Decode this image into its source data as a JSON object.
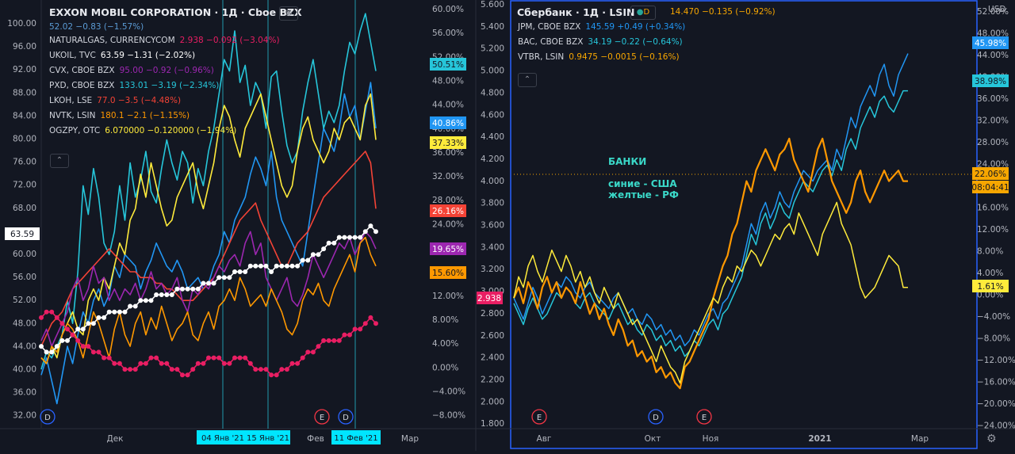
{
  "left": {
    "title": "EXXON MOBIL CORPORATION · 1Д · Cboe BZX",
    "main_values": "52.02  −0.83 (−1.57%)",
    "legend": [
      {
        "sym": "NATURALGAS, CURRENCYCOM",
        "vals": "2.938  −0.092 (−3.04%)",
        "color": "#e91e63"
      },
      {
        "sym": "UKOIL, TVC",
        "vals": "63.59  −1.31 (−2.02%)",
        "color": "#ffffff"
      },
      {
        "sym": "CVX, CBOE BZX",
        "vals": "95.00  −0.92 (−0.96%)",
        "color": "#9c27b0"
      },
      {
        "sym": "PXD, CBOE BZX",
        "vals": "133.01  −3.19 (−2.34%)",
        "color": "#26c6da"
      },
      {
        "sym": "LKOH, LSE",
        "vals": "77.0  −3.5 (−4.48%)",
        "color": "#f44336"
      },
      {
        "sym": "NVTK, LSIN",
        "vals": "180.1  −2.1 (−1.15%)",
        "color": "#ff9800"
      },
      {
        "sym": "OGZPY, OTC",
        "vals": "6.070000  −0.120000 (−1.94%)",
        "color": "#ffeb3b"
      }
    ],
    "axis_left_ticks": [
      "100.00",
      "96.00",
      "92.00",
      "88.00",
      "84.00",
      "80.00",
      "76.00",
      "72.00",
      "68.00",
      "64.00",
      "60.00",
      "56.00",
      "52.00",
      "48.00",
      "44.00",
      "40.00",
      "36.00",
      "32.00"
    ],
    "axis_pct_ticks": [
      "60.00%",
      "56.00%",
      "52.00%",
      "48.00%",
      "44.00%",
      "40.00%",
      "36.00%",
      "32.00%",
      "28.00%",
      "24.00%",
      "20.00%",
      "16.00%",
      "12.00%",
      "8.00%",
      "4.00%",
      "0.00%",
      "−4.00%",
      "−8.00%"
    ],
    "axis_mid_ticks": [
      "5.600",
      "5.400",
      "5.200",
      "5.000",
      "4.800",
      "4.600",
      "4.400",
      "4.200",
      "4.000",
      "3.800",
      "3.600",
      "3.400",
      "3.200",
      "3.000",
      "2.800",
      "2.600",
      "2.400",
      "2.200",
      "2.000",
      "1.800"
    ],
    "x_labels": [
      "Дек",
      "Фев",
      "Мар"
    ],
    "x_highlight_labels": [
      "04 Янв '21",
      "15 Янв '21",
      "11 Фев '21"
    ],
    "badges": [
      {
        "text": "50.51%",
        "color": "#26c6da",
        "fg": "#131722"
      },
      {
        "text": "40.86%",
        "color": "#2196f3",
        "fg": "#ffffff"
      },
      {
        "text": "37.33%",
        "color": "#ffeb3b",
        "fg": "#131722"
      },
      {
        "text": "26.16%",
        "color": "#f44336",
        "fg": "#ffffff"
      },
      {
        "text": "19.65%",
        "color": "#9c27b0",
        "fg": "#ffffff"
      },
      {
        "text": "15.60%",
        "color": "#ff9800",
        "fg": "#131722"
      },
      {
        "text": "2.938",
        "color": "#e91e63",
        "fg": "#ffffff"
      },
      {
        "text": "63.59",
        "color": "#ffffff",
        "fg": "#131722"
      }
    ],
    "events": [
      "D",
      "E",
      "D"
    ]
  },
  "right": {
    "title": "Сбербанк · 1Д · LSIN",
    "main_values": "14.470  −0.135 (−0.92%)",
    "currency": "USD",
    "legend": [
      {
        "sym": "JPM, CBOE BZX",
        "vals": "145.59  +0.49 (+0.34%)",
        "color": "#2196f3"
      },
      {
        "sym": "BAC, CBOE BZX",
        "vals": "34.19  −0.22 (−0.64%)",
        "color": "#26c6da"
      },
      {
        "sym": "VTBR, LSIN",
        "vals": "0.9475  −0.0015 (−0.16%)",
        "color": "#f7a600"
      }
    ],
    "axis_ticks": [
      "52.00%",
      "48.00%",
      "44.00%",
      "40.00%",
      "36.00%",
      "32.00%",
      "28.00%",
      "24.00%",
      "20.00%",
      "16.00%",
      "12.00%",
      "8.00%",
      "4.00%",
      "0.00%",
      "−4.00%",
      "−8.00%",
      "−12.00%",
      "−16.00%",
      "−20.00%",
      "−24.00%"
    ],
    "x_labels": [
      "Авг",
      "Окт",
      "Ноя",
      "2021",
      "Мар"
    ],
    "badges": [
      {
        "text": "45.98%",
        "color": "#2196f3",
        "fg": "#ffffff"
      },
      {
        "text": "38.98%",
        "color": "#26c6da",
        "fg": "#131722"
      },
      {
        "text": "22.06%",
        "color": "#f7a600",
        "fg": "#131722"
      },
      {
        "text": "08:04:41",
        "color": "#f7a600",
        "fg": "#131722"
      },
      {
        "text": "1.61%",
        "color": "#ffeb3b",
        "fg": "#131722"
      }
    ],
    "events": [
      "E",
      "D",
      "E"
    ],
    "note_title": "БАНКИ",
    "note_lines": [
      "синие - США",
      "желтые - РФ"
    ]
  },
  "chart_data": [
    {
      "type": "line",
      "title": "EXXON MOBIL CORPORATION · 1Д · Cboe BZX (percent comparison)",
      "xlabel": "",
      "ylabel": "%",
      "ylim": [
        -10,
        61
      ],
      "x_range": [
        "Nov 2020",
        "Mar 2021"
      ],
      "series": [
        {
          "name": "XOM",
          "color": "#2196f3",
          "values": [
            -3,
            0,
            -4,
            -8,
            -3,
            2,
            -1,
            4,
            8,
            6,
            10,
            12,
            9,
            11,
            16,
            14,
            18,
            17,
            16,
            12,
            15,
            17,
            20,
            18,
            16,
            15,
            17,
            15,
            12,
            13,
            14,
            12,
            13,
            16,
            18,
            22,
            20,
            24,
            26,
            28,
            32,
            35,
            33,
            30,
            36,
            28,
            24,
            22,
            20,
            18,
            16,
            22,
            28,
            34,
            40,
            38,
            36,
            40,
            46,
            42,
            44,
            38,
            43,
            48,
            40
          ]
        },
        {
          "name": "PXD",
          "color": "#26c6da",
          "values": [
            -2,
            1,
            0,
            2,
            4,
            10,
            6,
            15,
            30,
            25,
            33,
            28,
            20,
            18,
            22,
            30,
            24,
            34,
            28,
            31,
            36,
            29,
            27,
            33,
            38,
            34,
            31,
            36,
            34,
            27,
            33,
            30,
            36,
            40,
            46,
            52,
            50,
            57,
            48,
            51,
            44,
            48,
            46,
            40,
            49,
            50,
            43,
            37,
            34,
            36,
            43,
            48,
            52,
            46,
            40,
            43,
            41,
            44,
            50,
            55,
            53,
            57,
            60,
            55,
            50
          ]
        },
        {
          "name": "OGZPY",
          "color": "#ffeb3b",
          "values": [
            0,
            -1,
            2,
            0,
            4,
            6,
            8,
            5,
            4,
            10,
            12,
            10,
            14,
            12,
            16,
            20,
            18,
            24,
            26,
            32,
            28,
            34,
            30,
            26,
            23,
            24,
            28,
            30,
            32,
            34,
            29,
            26,
            30,
            34,
            40,
            44,
            42,
            38,
            35,
            40,
            42,
            44,
            46,
            42,
            38,
            34,
            30,
            28,
            30,
            36,
            40,
            42,
            38,
            36,
            34,
            36,
            40,
            38,
            41,
            42,
            40,
            38,
            44,
            46,
            38
          ]
        },
        {
          "name": "LKOH",
          "color": "#f44336",
          "values": [
            2,
            4,
            6,
            7,
            8,
            10,
            12,
            13,
            14,
            15,
            16,
            17,
            18,
            19,
            18,
            17,
            16,
            15,
            15,
            14,
            14,
            14,
            13,
            13,
            12,
            12,
            11,
            10,
            10,
            10,
            11,
            12,
            13,
            14,
            16,
            18,
            20,
            22,
            24,
            25,
            26,
            27,
            24,
            22,
            20,
            18,
            16,
            16,
            18,
            20,
            21,
            22,
            24,
            26,
            28,
            29,
            30,
            31,
            32,
            33,
            34,
            35,
            36,
            34,
            26
          ]
        },
        {
          "name": "CVX",
          "color": "#9c27b0",
          "values": [
            3,
            5,
            2,
            4,
            6,
            8,
            12,
            14,
            10,
            12,
            16,
            13,
            14,
            10,
            12,
            10,
            12,
            11,
            13,
            10,
            12,
            15,
            12,
            13,
            11,
            12,
            14,
            10,
            8,
            12,
            11,
            13,
            12,
            14,
            16,
            15,
            17,
            18,
            16,
            20,
            22,
            18,
            20,
            14,
            12,
            10,
            12,
            14,
            10,
            9,
            11,
            14,
            18,
            16,
            14,
            16,
            18,
            20,
            19,
            21,
            18,
            20,
            22,
            21,
            19
          ]
        },
        {
          "name": "NVTK",
          "color": "#ff9800",
          "values": [
            0,
            -1,
            2,
            1,
            4,
            6,
            5,
            3,
            0,
            4,
            8,
            6,
            3,
            0,
            5,
            8,
            4,
            2,
            6,
            8,
            4,
            7,
            5,
            9,
            6,
            3,
            5,
            6,
            8,
            4,
            3,
            6,
            8,
            5,
            9,
            10,
            12,
            10,
            14,
            12,
            9,
            10,
            11,
            9,
            12,
            10,
            8,
            5,
            4,
            6,
            10,
            12,
            11,
            13,
            10,
            9,
            12,
            14,
            16,
            18,
            15,
            20,
            21,
            18,
            16
          ]
        },
        {
          "name": "UKOIL",
          "color": "#ffffff",
          "values": [
            2,
            1,
            1,
            2,
            3,
            3,
            4,
            5,
            5,
            6,
            6,
            7,
            7,
            8,
            8,
            8,
            8,
            9,
            9,
            10,
            10,
            10,
            11,
            11,
            11,
            11,
            12,
            12,
            12,
            12,
            12,
            13,
            13,
            13,
            14,
            14,
            14,
            15,
            15,
            15,
            16,
            16,
            16,
            16,
            15,
            16,
            16,
            16,
            16,
            16,
            17,
            17,
            18,
            18,
            19,
            20,
            20,
            21,
            21,
            21,
            21,
            21,
            22,
            23,
            22
          ]
        },
        {
          "name": "NATURALGAS",
          "color": "#e91e63",
          "values": [
            7,
            8,
            8,
            7,
            6,
            5,
            4,
            3,
            2,
            2,
            1,
            1,
            0,
            0,
            -1,
            -1,
            -2,
            -2,
            -2,
            -1,
            -1,
            0,
            0,
            -1,
            -1,
            -2,
            -2,
            -3,
            -3,
            -2,
            -1,
            -1,
            0,
            0,
            0,
            -1,
            -1,
            0,
            0,
            0,
            -1,
            -2,
            -2,
            -2,
            -3,
            -3,
            -2,
            -2,
            -1,
            -1,
            0,
            1,
            1,
            2,
            3,
            3,
            3,
            3,
            4,
            4,
            5,
            5,
            6,
            7,
            6
          ]
        }
      ]
    },
    {
      "type": "line",
      "title": "Сбербанк · 1Д · LSIN (percent comparison)",
      "xlabel": "",
      "ylabel": "%",
      "ylim": [
        -24,
        54
      ],
      "x_range": [
        "Jul 2020",
        "Mar 2021"
      ],
      "series": [
        {
          "name": "JPM",
          "color": "#2196f3",
          "values": [
            0,
            -2,
            -4,
            -1,
            2,
            0,
            -3,
            -1,
            1,
            3,
            2,
            4,
            3,
            1,
            0,
            2,
            3,
            1,
            0,
            -1,
            -2,
            0,
            1,
            -1,
            -3,
            -2,
            -4,
            -5,
            -3,
            -4,
            -6,
            -5,
            -7,
            -6,
            -8,
            -7,
            -9,
            -8,
            -6,
            -7,
            -5,
            -3,
            -2,
            -4,
            -1,
            0,
            2,
            4,
            6,
            10,
            14,
            12,
            16,
            18,
            15,
            17,
            20,
            18,
            17,
            20,
            22,
            24,
            23,
            22,
            24,
            25,
            26,
            24,
            28,
            26,
            30,
            34,
            32,
            36,
            38,
            40,
            38,
            42,
            44,
            40,
            38,
            42,
            44,
            46
          ]
        },
        {
          "name": "BAC",
          "color": "#26c6da",
          "values": [
            -1,
            -3,
            -5,
            -2,
            0,
            -2,
            -4,
            -3,
            -1,
            1,
            0,
            2,
            1,
            -1,
            -2,
            0,
            1,
            -1,
            -2,
            -3,
            -4,
            -2,
            -1,
            -3,
            -5,
            -4,
            -6,
            -7,
            -5,
            -6,
            -8,
            -7,
            -9,
            -8,
            -10,
            -9,
            -11,
            -10,
            -8,
            -9,
            -7,
            -5,
            -4,
            -6,
            -3,
            -2,
            0,
            2,
            4,
            8,
            12,
            10,
            14,
            16,
            13,
            15,
            18,
            16,
            15,
            18,
            20,
            22,
            21,
            20,
            22,
            24,
            25,
            23,
            26,
            24,
            28,
            30,
            28,
            32,
            34,
            36,
            34,
            37,
            38,
            36,
            35,
            37,
            39,
            39
          ]
        },
        {
          "name": "Сбербанк",
          "color": "#ff9800",
          "values": [
            0,
            2,
            -1,
            3,
            1,
            -2,
            2,
            4,
            1,
            3,
            0,
            2,
            1,
            -1,
            3,
            0,
            -3,
            -1,
            -4,
            -2,
            -5,
            -7,
            -4,
            -6,
            -9,
            -8,
            -11,
            -10,
            -12,
            -11,
            -14,
            -13,
            -15,
            -14,
            -16,
            -17,
            -13,
            -12,
            -10,
            -8,
            -6,
            -4,
            0,
            3,
            6,
            8,
            12,
            14,
            18,
            22,
            20,
            24,
            26,
            28,
            26,
            24,
            27,
            28,
            30,
            26,
            24,
            22,
            20,
            24,
            28,
            30,
            26,
            22,
            20,
            18,
            16,
            18,
            22,
            24,
            20,
            18,
            20,
            22,
            24,
            22,
            23,
            24,
            22,
            22
          ]
        },
        {
          "name": "VTBR",
          "color": "#ffeb3b",
          "values": [
            0,
            4,
            2,
            6,
            8,
            5,
            3,
            6,
            9,
            7,
            5,
            8,
            6,
            3,
            5,
            2,
            4,
            1,
            -1,
            2,
            0,
            -2,
            1,
            -1,
            -3,
            -5,
            -4,
            -6,
            -8,
            -10,
            -12,
            -9,
            -11,
            -13,
            -14,
            -16,
            -12,
            -10,
            -8,
            -6,
            -4,
            -2,
            0,
            -1,
            2,
            4,
            3,
            6,
            5,
            7,
            9,
            8,
            6,
            8,
            10,
            12,
            11,
            13,
            14,
            12,
            16,
            14,
            12,
            10,
            8,
            12,
            14,
            16,
            18,
            14,
            12,
            10,
            6,
            2,
            0,
            1,
            2,
            4,
            6,
            8,
            7,
            6,
            2,
            2
          ]
        }
      ]
    }
  ]
}
